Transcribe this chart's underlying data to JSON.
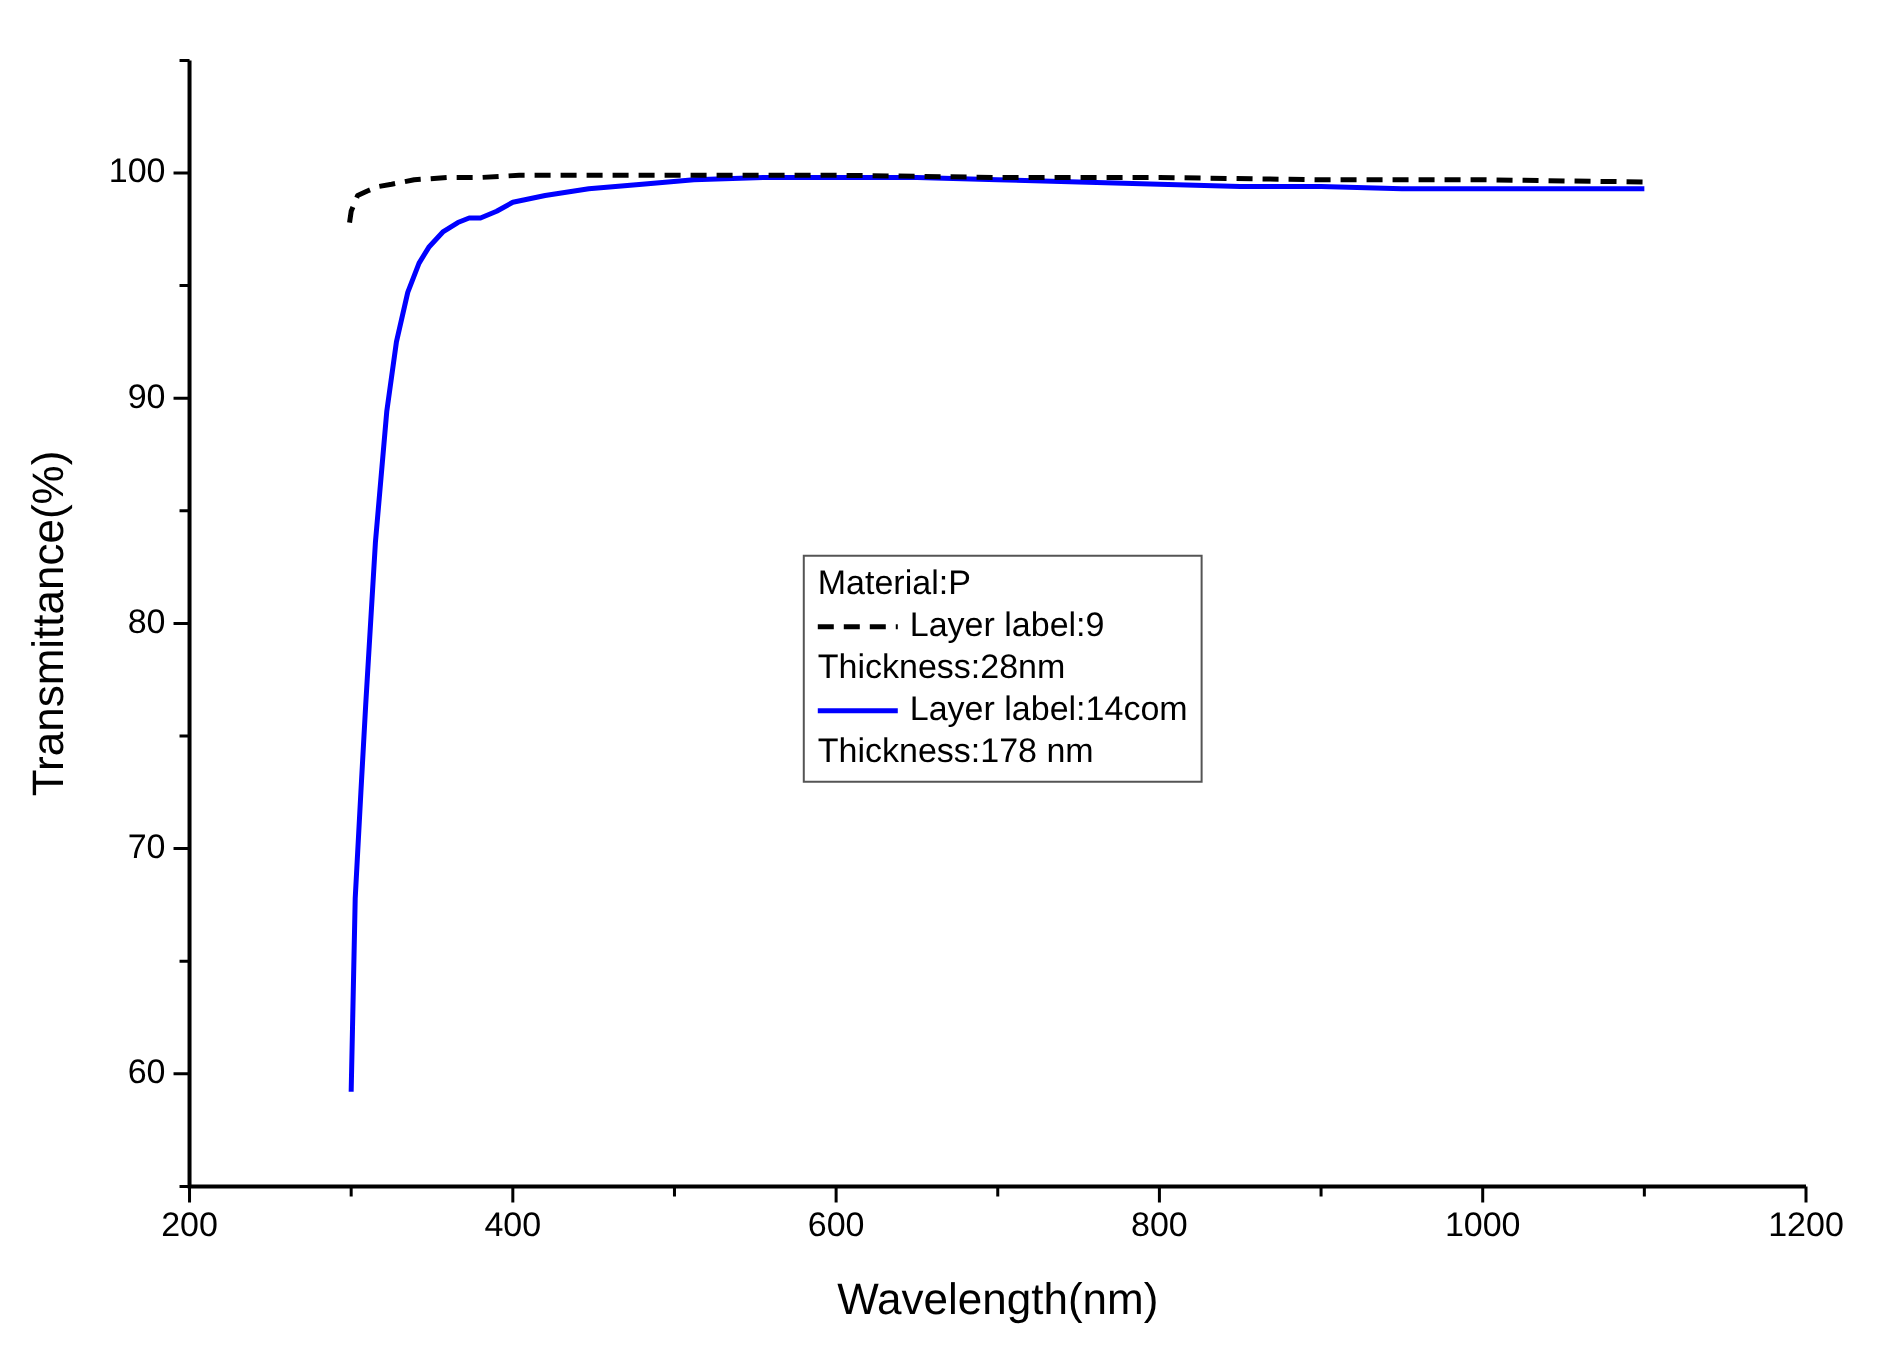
{
  "chart_data": {
    "type": "line",
    "xlabel": "Wavelength(nm)",
    "ylabel": "Transmittance(%)",
    "legend_title": "Material:P",
    "legend": "right",
    "marker": "none",
    "grid": false,
    "xlim": [
      200,
      1200
    ],
    "xticks": [
      200,
      400,
      600,
      800,
      1000,
      1200
    ],
    "ylim": [
      55,
      105
    ],
    "yticks": [
      60,
      70,
      80,
      90,
      100
    ],
    "series": [
      {
        "name": "Layer label:9",
        "color": "#000000",
        "line_style": "dashed",
        "x": [
          299,
          300,
          304,
          310,
          317,
          325,
          339,
          360,
          380,
          404,
          450,
          500,
          550,
          600,
          700,
          800,
          900,
          1000,
          1100
        ],
        "values": [
          97.8,
          98.3,
          99.0,
          99.2,
          99.4,
          99.5,
          99.7,
          99.8,
          99.8,
          99.9,
          99.9,
          99.9,
          99.9,
          99.9,
          99.8,
          99.8,
          99.7,
          99.7,
          99.6
        ]
      },
      {
        "name": "Layer label:14com",
        "color": "#0000ff",
        "line_style": "solid",
        "x": [
          300,
          302.5,
          306,
          309,
          315,
          322,
          328,
          335,
          342,
          348,
          357,
          366,
          373,
          380,
          390,
          400,
          420,
          447,
          480,
          512,
          555,
          600,
          650,
          700,
          750,
          800,
          850,
          900,
          950,
          1000,
          1050,
          1100
        ],
        "values": [
          59.2,
          67.8,
          72.5,
          76.4,
          83.6,
          89.4,
          92.5,
          94.7,
          96.0,
          96.7,
          97.4,
          97.8,
          98.0,
          98.0,
          98.3,
          98.7,
          99.0,
          99.3,
          99.5,
          99.7,
          99.8,
          99.8,
          99.8,
          99.7,
          99.6,
          99.5,
          99.4,
          99.4,
          99.3,
          99.3,
          99.3,
          99.3
        ]
      }
    ],
    "annotations": [
      "Thickness:28nm",
      "Thickness:178 nm"
    ]
  }
}
